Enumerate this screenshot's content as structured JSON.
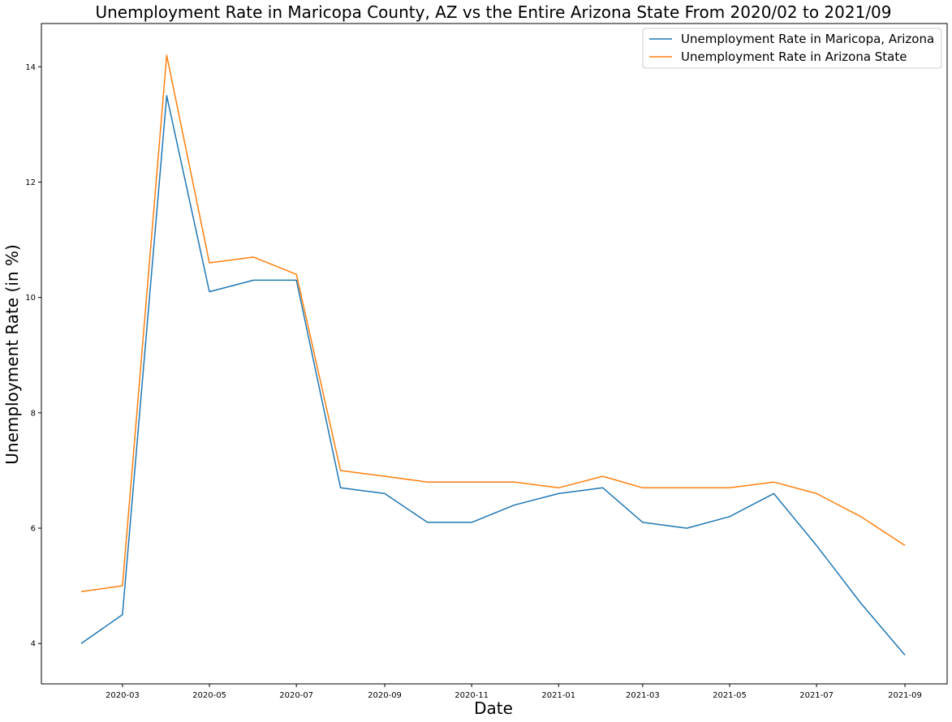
{
  "chart_data": {
    "type": "line",
    "title": "Unemployment Rate in Maricopa County, AZ vs the Entire Arizona State From 2020/02 to 2021/09",
    "xlabel": "Date",
    "ylabel": "Unemployment Rate (in %)",
    "x": [
      "2020-02",
      "2020-03",
      "2020-04",
      "2020-05",
      "2020-06",
      "2020-07",
      "2020-08",
      "2020-09",
      "2020-10",
      "2020-11",
      "2020-12",
      "2021-01",
      "2021-02",
      "2021-03",
      "2021-04",
      "2021-05",
      "2021-06",
      "2021-07",
      "2021-08",
      "2021-09"
    ],
    "x_ticks": [
      "2020-03",
      "2020-05",
      "2020-07",
      "2020-09",
      "2020-11",
      "2021-01",
      "2021-03",
      "2021-05",
      "2021-07",
      "2021-09"
    ],
    "y_ticks": [
      4,
      6,
      8,
      10,
      12,
      14
    ],
    "ylim": [
      3.3,
      14.75
    ],
    "grid": false,
    "legend_position": "top-right",
    "series": [
      {
        "name": "Unemployment Rate in Maricopa, Arizona",
        "color": "#1f77b4",
        "values": [
          4.0,
          4.5,
          13.5,
          10.1,
          10.3,
          10.3,
          6.7,
          6.6,
          6.1,
          6.1,
          6.4,
          6.6,
          6.7,
          6.1,
          6.0,
          6.2,
          6.6,
          5.7,
          4.7,
          3.8
        ]
      },
      {
        "name": "Unemployment Rate in Arizona State",
        "color": "#ff7f0e",
        "values": [
          4.9,
          5.0,
          14.2,
          10.6,
          10.7,
          10.4,
          7.0,
          6.9,
          6.8,
          6.8,
          6.8,
          6.7,
          6.9,
          6.7,
          6.7,
          6.7,
          6.8,
          6.6,
          6.2,
          5.7
        ]
      }
    ]
  }
}
